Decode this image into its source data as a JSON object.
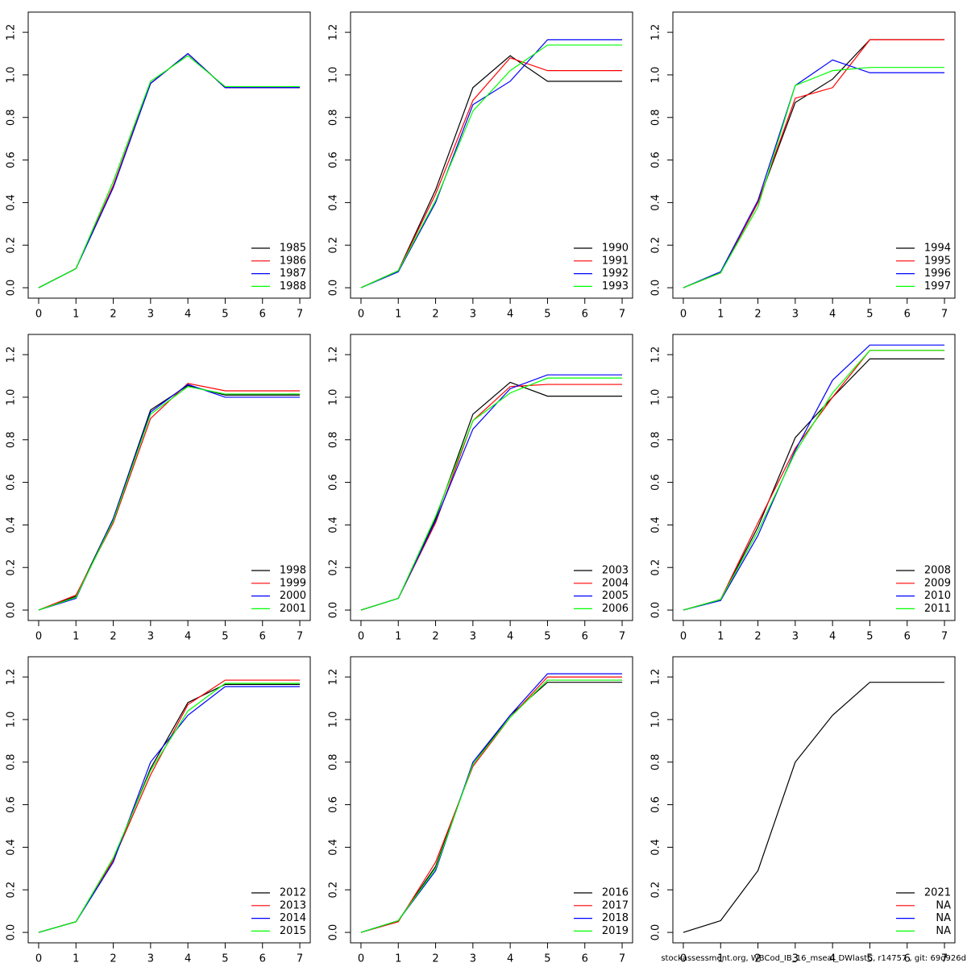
{
  "chart_data": [
    {
      "type": "line",
      "x": [
        0,
        1,
        2,
        3,
        4,
        5,
        6,
        7
      ],
      "xlim": [
        -0.28,
        7.28
      ],
      "ylim": [
        -0.049,
        1.295
      ],
      "xticks": [
        0,
        1,
        2,
        3,
        4,
        5,
        6,
        7
      ],
      "yticks": [
        {
          "value": 0,
          "label": "0.0"
        },
        0.2,
        0.4,
        0.6,
        0.8,
        {
          "value": 1,
          "label": "1.0"
        },
        1.2
      ],
      "legend": "bottom-right",
      "series": [
        {
          "name": "1985",
          "color": "#000000",
          "values": [
            0,
            0.09,
            0.48,
            0.96,
            1.1,
            0.94,
            0.94,
            0.94
          ]
        },
        {
          "name": "1986",
          "color": "#ff0000",
          "values": [
            0,
            0.09,
            0.48,
            0.96,
            1.1,
            0.94,
            0.94,
            0.94
          ]
        },
        {
          "name": "1987",
          "color": "#0000ff",
          "values": [
            0,
            0.09,
            0.47,
            0.96,
            1.1,
            0.94,
            0.94,
            0.94
          ]
        },
        {
          "name": "1988",
          "color": "#00ff00",
          "values": [
            0,
            0.09,
            0.5,
            0.97,
            1.09,
            0.945,
            0.945,
            0.945
          ]
        }
      ]
    },
    {
      "type": "line",
      "x": [
        0,
        1,
        2,
        3,
        4,
        5,
        6,
        7
      ],
      "xlim": [
        -0.28,
        7.28
      ],
      "ylim": [
        -0.049,
        1.295
      ],
      "xticks": [
        0,
        1,
        2,
        3,
        4,
        5,
        6,
        7
      ],
      "yticks": [
        {
          "value": 0,
          "label": "0.0"
        },
        0.2,
        0.4,
        0.6,
        0.8,
        {
          "value": 1,
          "label": "1.0"
        },
        1.2
      ],
      "legend": "bottom-right",
      "series": [
        {
          "name": "1990",
          "color": "#000000",
          "values": [
            0,
            0.08,
            0.46,
            0.94,
            1.09,
            0.97,
            0.97,
            0.97
          ]
        },
        {
          "name": "1991",
          "color": "#ff0000",
          "values": [
            0,
            0.08,
            0.44,
            0.88,
            1.08,
            1.02,
            1.02,
            1.02
          ]
        },
        {
          "name": "1992",
          "color": "#0000ff",
          "values": [
            0,
            0.075,
            0.4,
            0.86,
            0.97,
            1.165,
            1.165,
            1.165
          ]
        },
        {
          "name": "1993",
          "color": "#00ff00",
          "values": [
            0,
            0.08,
            0.41,
            0.83,
            1.02,
            1.14,
            1.14,
            1.14
          ]
        }
      ]
    },
    {
      "type": "line",
      "x": [
        0,
        1,
        2,
        3,
        4,
        5,
        6,
        7
      ],
      "xlim": [
        -0.28,
        7.28
      ],
      "ylim": [
        -0.049,
        1.295
      ],
      "xticks": [
        0,
        1,
        2,
        3,
        4,
        5,
        6,
        7
      ],
      "yticks": [
        {
          "value": 0,
          "label": "0.0"
        },
        0.2,
        0.4,
        0.6,
        0.8,
        {
          "value": 1,
          "label": "1.0"
        },
        1.2
      ],
      "legend": "bottom-right",
      "series": [
        {
          "name": "1994",
          "color": "#000000",
          "values": [
            0,
            0.07,
            0.4,
            0.87,
            0.98,
            1.165,
            1.165,
            1.165
          ]
        },
        {
          "name": "1995",
          "color": "#ff0000",
          "values": [
            0,
            0.07,
            0.4,
            0.89,
            0.94,
            1.165,
            1.165,
            1.165
          ]
        },
        {
          "name": "1996",
          "color": "#0000ff",
          "values": [
            0,
            0.075,
            0.41,
            0.95,
            1.07,
            1.01,
            1.01,
            1.01
          ]
        },
        {
          "name": "1997",
          "color": "#00ff00",
          "values": [
            0,
            0.07,
            0.38,
            0.95,
            1.02,
            1.035,
            1.035,
            1.035
          ]
        }
      ]
    },
    {
      "type": "line",
      "x": [
        0,
        1,
        2,
        3,
        4,
        5,
        6,
        7
      ],
      "xlim": [
        -0.28,
        7.28
      ],
      "ylim": [
        -0.049,
        1.295
      ],
      "xticks": [
        0,
        1,
        2,
        3,
        4,
        5,
        6,
        7
      ],
      "yticks": [
        {
          "value": 0,
          "label": "0.0"
        },
        0.2,
        0.4,
        0.6,
        0.8,
        {
          "value": 1,
          "label": "1.0"
        },
        1.2
      ],
      "legend": "bottom-right",
      "series": [
        {
          "name": "1998",
          "color": "#000000",
          "values": [
            0,
            0.065,
            0.43,
            0.94,
            1.055,
            1.01,
            1.01,
            1.01
          ]
        },
        {
          "name": "1999",
          "color": "#ff0000",
          "values": [
            0,
            0.07,
            0.41,
            0.9,
            1.065,
            1.03,
            1.03,
            1.03
          ]
        },
        {
          "name": "2000",
          "color": "#0000ff",
          "values": [
            0,
            0.055,
            0.43,
            0.93,
            1.06,
            1.0,
            1.0,
            1.0
          ]
        },
        {
          "name": "2001",
          "color": "#00ff00",
          "values": [
            0,
            0.06,
            0.42,
            0.92,
            1.05,
            1.015,
            1.015,
            1.015
          ]
        }
      ]
    },
    {
      "type": "line",
      "x": [
        0,
        1,
        2,
        3,
        4,
        5,
        6,
        7
      ],
      "xlim": [
        -0.28,
        7.28
      ],
      "ylim": [
        -0.049,
        1.295
      ],
      "xticks": [
        0,
        1,
        2,
        3,
        4,
        5,
        6,
        7
      ],
      "yticks": [
        {
          "value": 0,
          "label": "0.0"
        },
        0.2,
        0.4,
        0.6,
        0.8,
        {
          "value": 1,
          "label": "1.0"
        },
        1.2
      ],
      "legend": "bottom-right",
      "series": [
        {
          "name": "2003",
          "color": "#000000",
          "values": [
            0,
            0.055,
            0.43,
            0.92,
            1.07,
            1.005,
            1.005,
            1.005
          ]
        },
        {
          "name": "2004",
          "color": "#ff0000",
          "values": [
            0,
            0.055,
            0.41,
            0.89,
            1.05,
            1.06,
            1.06,
            1.06
          ]
        },
        {
          "name": "2005",
          "color": "#0000ff",
          "values": [
            0,
            0.055,
            0.42,
            0.85,
            1.04,
            1.105,
            1.105,
            1.105
          ]
        },
        {
          "name": "2006",
          "color": "#00ff00",
          "values": [
            0,
            0.055,
            0.44,
            0.89,
            1.02,
            1.09,
            1.09,
            1.09
          ]
        }
      ]
    },
    {
      "type": "line",
      "x": [
        0,
        1,
        2,
        3,
        4,
        5,
        6,
        7
      ],
      "xlim": [
        -0.28,
        7.28
      ],
      "ylim": [
        -0.049,
        1.295
      ],
      "xticks": [
        0,
        1,
        2,
        3,
        4,
        5,
        6,
        7
      ],
      "yticks": [
        {
          "value": 0,
          "label": "0.0"
        },
        0.2,
        0.4,
        0.6,
        0.8,
        {
          "value": 1,
          "label": "1.0"
        },
        1.2
      ],
      "legend": "bottom-right",
      "series": [
        {
          "name": "2008",
          "color": "#000000",
          "values": [
            0,
            0.05,
            0.39,
            0.81,
            1.0,
            1.18,
            1.18,
            1.18
          ]
        },
        {
          "name": "2009",
          "color": "#ff0000",
          "values": [
            0,
            0.05,
            0.41,
            0.76,
            1.0,
            1.22,
            1.22,
            1.22
          ]
        },
        {
          "name": "2010",
          "color": "#0000ff",
          "values": [
            0,
            0.045,
            0.35,
            0.75,
            1.08,
            1.245,
            1.245,
            1.245
          ]
        },
        {
          "name": "2011",
          "color": "#00ff00",
          "values": [
            0,
            0.05,
            0.37,
            0.74,
            1.02,
            1.22,
            1.22,
            1.22
          ]
        }
      ]
    },
    {
      "type": "line",
      "x": [
        0,
        1,
        2,
        3,
        4,
        5,
        6,
        7
      ],
      "xlim": [
        -0.28,
        7.28
      ],
      "ylim": [
        -0.049,
        1.295
      ],
      "xticks": [
        0,
        1,
        2,
        3,
        4,
        5,
        6,
        7
      ],
      "yticks": [
        {
          "value": 0,
          "label": "0.0"
        },
        0.2,
        0.4,
        0.6,
        0.8,
        {
          "value": 1,
          "label": "1.0"
        },
        1.2
      ],
      "legend": "bottom-right",
      "series": [
        {
          "name": "2012",
          "color": "#000000",
          "values": [
            0,
            0.05,
            0.34,
            0.77,
            1.08,
            1.165,
            1.165,
            1.165
          ]
        },
        {
          "name": "2013",
          "color": "#ff0000",
          "values": [
            0,
            0.05,
            0.34,
            0.74,
            1.07,
            1.185,
            1.185,
            1.185
          ]
        },
        {
          "name": "2014",
          "color": "#0000ff",
          "values": [
            0,
            0.05,
            0.33,
            0.8,
            1.02,
            1.155,
            1.155,
            1.155
          ]
        },
        {
          "name": "2015",
          "color": "#00ff00",
          "values": [
            0,
            0.05,
            0.35,
            0.76,
            1.04,
            1.17,
            1.17,
            1.17
          ]
        }
      ]
    },
    {
      "type": "line",
      "x": [
        0,
        1,
        2,
        3,
        4,
        5,
        6,
        7
      ],
      "xlim": [
        -0.28,
        7.28
      ],
      "ylim": [
        -0.049,
        1.295
      ],
      "xticks": [
        0,
        1,
        2,
        3,
        4,
        5,
        6,
        7
      ],
      "yticks": [
        {
          "value": 0,
          "label": "0.0"
        },
        0.2,
        0.4,
        0.6,
        0.8,
        {
          "value": 1,
          "label": "1.0"
        },
        1.2
      ],
      "legend": "bottom-right",
      "series": [
        {
          "name": "2016",
          "color": "#000000",
          "values": [
            0,
            0.055,
            0.31,
            0.79,
            1.02,
            1.175,
            1.175,
            1.175
          ]
        },
        {
          "name": "2017",
          "color": "#ff0000",
          "values": [
            0,
            0.05,
            0.33,
            0.78,
            1.01,
            1.2,
            1.2,
            1.2
          ]
        },
        {
          "name": "2018",
          "color": "#0000ff",
          "values": [
            0,
            0.055,
            0.29,
            0.8,
            1.02,
            1.215,
            1.215,
            1.215
          ]
        },
        {
          "name": "2019",
          "color": "#00ff00",
          "values": [
            0,
            0.055,
            0.3,
            0.79,
            1.01,
            1.185,
            1.185,
            1.185
          ]
        }
      ]
    },
    {
      "type": "line",
      "x": [
        0,
        1,
        2,
        3,
        4,
        5,
        6,
        7
      ],
      "xlim": [
        -0.28,
        7.28
      ],
      "ylim": [
        -0.049,
        1.295
      ],
      "xticks": [
        0,
        1,
        2,
        3,
        4,
        5,
        6,
        7
      ],
      "yticks": [
        {
          "value": 0,
          "label": "0.0"
        },
        0.2,
        0.4,
        0.6,
        0.8,
        {
          "value": 1,
          "label": "1.0"
        },
        1.2
      ],
      "legend": "bottom-right",
      "series": [
        {
          "name": "2021",
          "color": "#000000",
          "values": [
            0,
            0.055,
            0.29,
            0.8,
            1.02,
            1.175,
            1.175,
            1.175
          ]
        },
        {
          "name": "NA",
          "color": "#ff0000",
          "values": [
            null,
            null,
            null,
            null,
            null,
            null,
            null,
            null
          ]
        },
        {
          "name": "NA",
          "color": "#0000ff",
          "values": [
            null,
            null,
            null,
            null,
            null,
            null,
            null,
            null
          ]
        },
        {
          "name": "NA",
          "color": "#00ff00",
          "values": [
            null,
            null,
            null,
            null,
            null,
            null,
            null,
            null
          ]
        }
      ]
    }
  ],
  "footer": "stockassessment.org, WBCod_IB_16_mseal_DWlastC, r14757 , git: 69d926d"
}
